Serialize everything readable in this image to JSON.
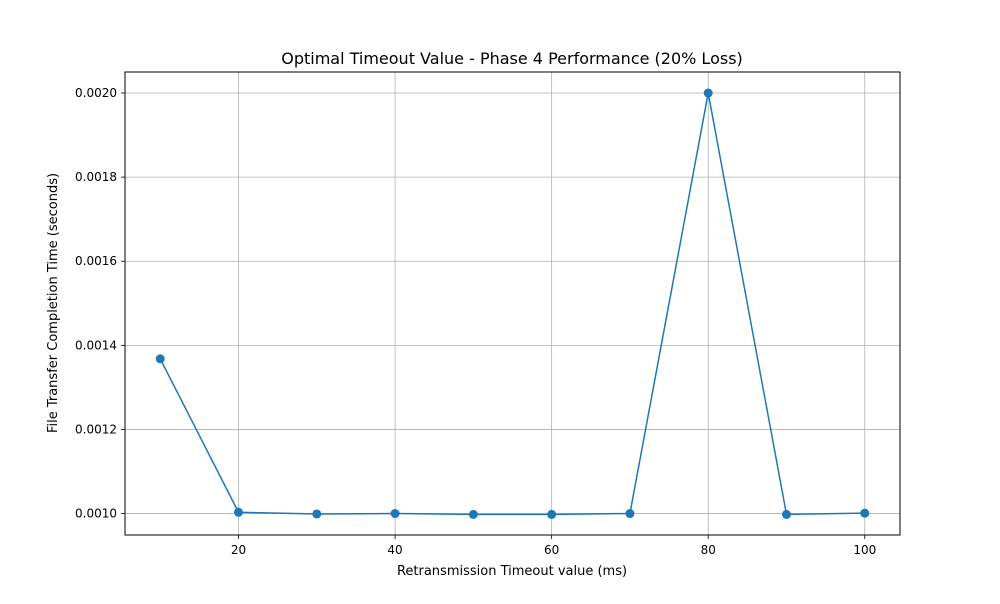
{
  "chart_data": {
    "type": "line",
    "title": "Optimal Timeout Value - Phase 4 Performance (20% Loss)",
    "xlabel": "Retransmission Timeout value (ms)",
    "ylabel": "File Transfer Completion Time (seconds)",
    "xlim": [
      5.5,
      104.5
    ],
    "ylim": [
      0.000949,
      0.00205
    ],
    "xticks": [
      20,
      40,
      60,
      80,
      100
    ],
    "xtick_labels": [
      "20",
      "40",
      "60",
      "80",
      "100"
    ],
    "yticks": [
      0.001,
      0.0012,
      0.0014,
      0.0016,
      0.0018,
      0.002
    ],
    "ytick_labels": [
      "0.0010",
      "0.0012",
      "0.0014",
      "0.0016",
      "0.0018",
      "0.0020"
    ],
    "grid": true,
    "legend": false,
    "series": [
      {
        "color": "#1f77b4",
        "x": [
          10,
          20,
          30,
          40,
          50,
          60,
          70,
          80,
          90,
          100
        ],
        "y": [
          0.001368,
          0.001003,
          0.000999,
          0.001,
          0.000998,
          0.000998,
          0.001,
          0.002,
          0.000998,
          0.001001
        ]
      }
    ]
  }
}
